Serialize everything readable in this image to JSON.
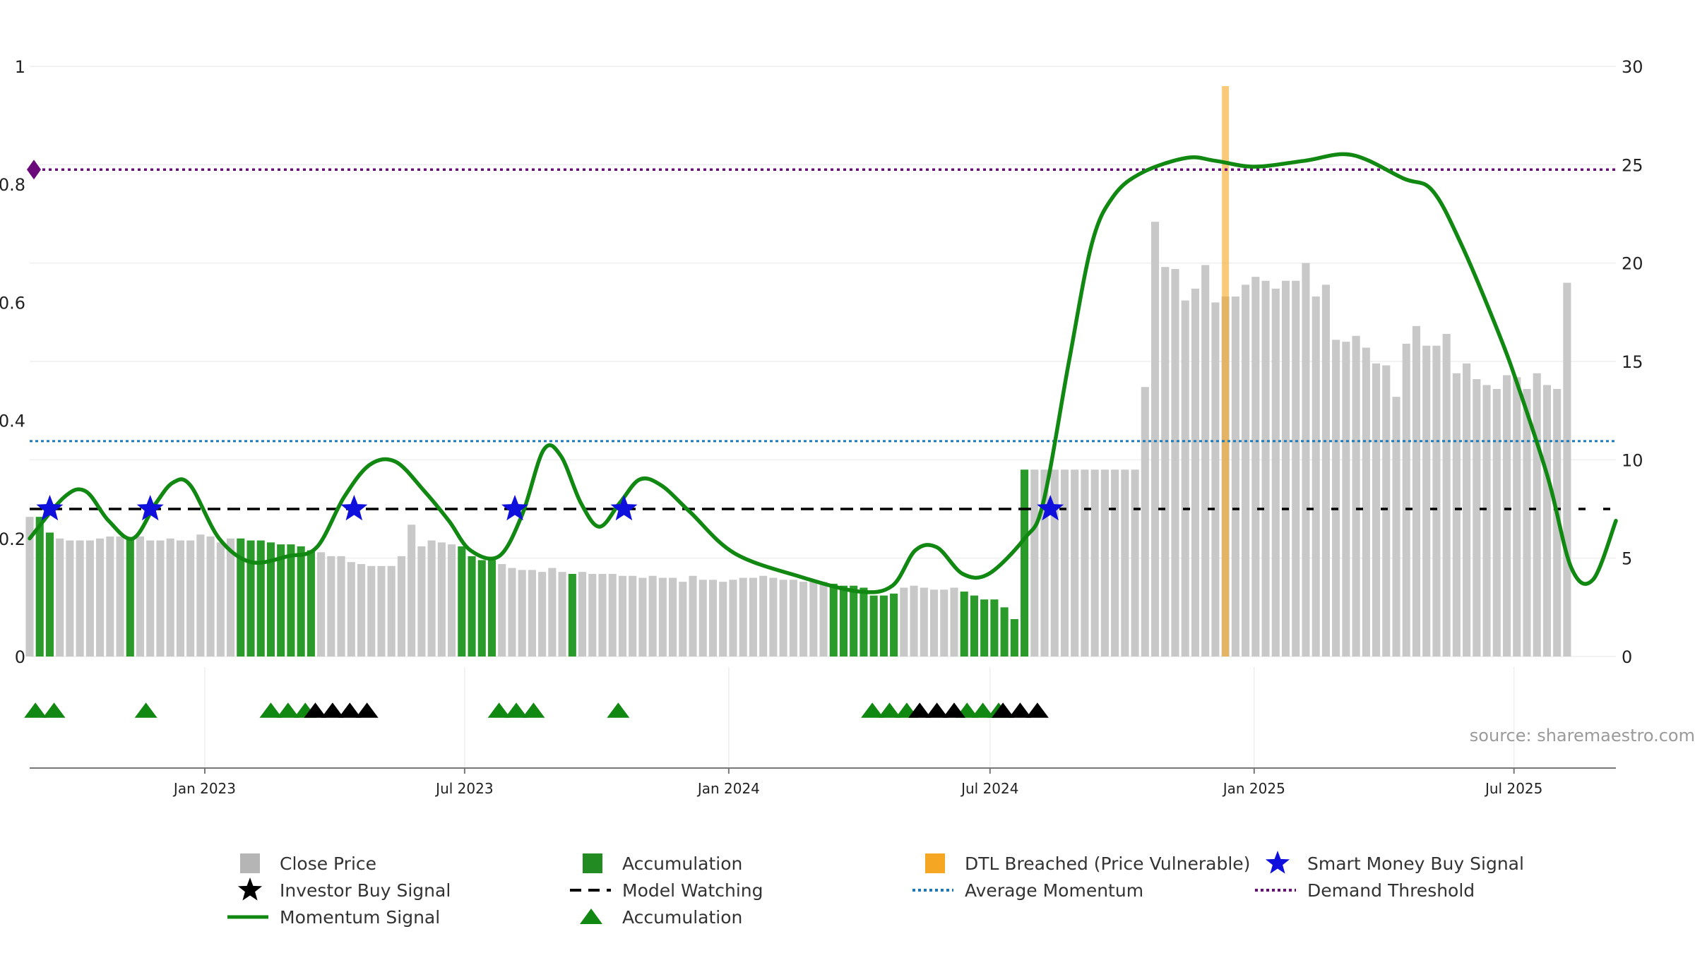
{
  "chart_data": {
    "type": "bar",
    "source_text": "source: sharemaestro.com",
    "left_axis": {
      "ylim": [
        0,
        1
      ],
      "ticks": [
        0,
        0.2,
        0.4,
        0.6,
        0.8,
        1
      ],
      "tick_labels": [
        "0",
        "0.2",
        "0.4",
        "0.6",
        "0.8",
        "1"
      ]
    },
    "right_axis": {
      "ylim": [
        0,
        30
      ],
      "ticks": [
        0,
        5,
        10,
        15,
        20,
        25,
        30
      ],
      "tick_labels": [
        "0",
        "5",
        "10",
        "15",
        "20",
        "25",
        "30"
      ]
    },
    "x_axis": {
      "start": "2022-09-01",
      "end": "2025-09-10",
      "ticks": [
        "2023-01-01",
        "2023-07-01",
        "2024-01-01",
        "2024-07-01",
        "2025-01-01",
        "2025-07-01"
      ],
      "tick_labels": [
        "Jan 2023",
        "Jul 2023",
        "Jan 2024",
        "Jul 2024",
        "Jan 2025",
        "Jul 2025"
      ]
    },
    "grid": true,
    "legend": {
      "placement": "bottom",
      "entries": [
        {
          "label": "Close Price",
          "symbol": "square",
          "color": "#b5b5b5"
        },
        {
          "label": "Accumulation",
          "symbol": "square",
          "color": "#228b22"
        },
        {
          "label": "DTL Breached (Price Vulnerable)",
          "symbol": "square",
          "color": "#f5a623"
        },
        {
          "label": "Smart Money Buy Signal",
          "symbol": "star",
          "color": "#1010dd"
        },
        {
          "label": "Investor Buy Signal",
          "symbol": "star",
          "color": "#000000"
        },
        {
          "label": "Model Watching",
          "symbol": "dash",
          "color": "#000000"
        },
        {
          "label": "Average Momentum",
          "symbol": "dot",
          "color": "#1f77b4"
        },
        {
          "label": "Demand Threshold",
          "symbol": "dot",
          "color": "#6a0a7a"
        },
        {
          "label": "Momentum Signal",
          "symbol": "line",
          "color": "#118811"
        },
        {
          "label": "Accumulation",
          "symbol": "triangle",
          "color": "#118811"
        }
      ]
    },
    "colors": {
      "price": "#c8c8c8",
      "accumulation": "#2a9a2a",
      "dtl": "#f5a623",
      "momentum": "#118811",
      "smart_star": "#1010dd",
      "investor_triangle": "#000000",
      "accum_triangle": "#118811",
      "watch": "#000000",
      "avg": "#1f77b4",
      "demand": "#6a0a7a"
    },
    "demand_threshold": 0.825,
    "average_momentum": 0.365,
    "model_watching_level": 0.25,
    "dtl_breached_date": "2024-12-12",
    "price_series": {
      "start": "2022-09-01",
      "step_days": 7,
      "values": [
        7.1,
        7.1,
        6.3,
        6.0,
        5.9,
        5.9,
        5.9,
        6.0,
        6.1,
        6.1,
        6.0,
        6.1,
        5.9,
        5.9,
        6.0,
        5.9,
        5.9,
        6.2,
        6.1,
        5.8,
        6.0,
        6.0,
        5.9,
        5.9,
        5.8,
        5.7,
        5.7,
        5.6,
        5.4,
        5.3,
        5.1,
        5.1,
        4.8,
        4.7,
        4.6,
        4.6,
        4.6,
        5.1,
        6.7,
        5.6,
        5.9,
        5.8,
        5.7,
        5.6,
        5.1,
        4.9,
        4.9,
        4.7,
        4.5,
        4.4,
        4.4,
        4.3,
        4.5,
        4.3,
        4.2,
        4.3,
        4.2,
        4.2,
        4.2,
        4.1,
        4.1,
        4.0,
        4.1,
        4.0,
        4.0,
        3.8,
        4.1,
        3.9,
        3.9,
        3.8,
        3.9,
        4.0,
        4.0,
        4.1,
        4.0,
        3.9,
        3.9,
        3.8,
        3.8,
        3.8,
        3.7,
        3.6,
        3.6,
        3.5,
        3.1,
        3.1,
        3.2,
        3.5,
        3.6,
        3.5,
        3.4,
        3.4,
        3.5,
        3.3,
        3.1,
        2.9,
        2.9,
        2.5,
        1.9,
        9.5,
        9.5,
        9.5,
        9.5,
        9.5,
        9.5,
        9.5,
        9.5,
        9.5,
        9.5,
        9.5,
        9.5,
        13.7,
        22.1,
        19.8,
        19.7,
        18.1,
        18.7,
        19.9,
        18.0,
        18.3,
        18.3,
        18.9,
        19.3,
        19.1,
        18.7,
        19.1,
        19.1,
        20.0,
        18.3,
        18.9,
        16.1,
        16.0,
        16.3,
        15.7,
        14.9,
        14.8,
        13.2,
        15.9,
        16.8,
        15.8,
        15.8,
        16.4,
        14.4,
        14.9,
        14.1,
        13.8,
        13.6,
        14.3,
        14.2,
        13.6,
        14.4,
        13.8,
        13.6,
        19.0
      ],
      "accumulation_ranges": [
        [
          1,
          2
        ],
        [
          10,
          10
        ],
        [
          21,
          28
        ],
        [
          43,
          46
        ],
        [
          54,
          54
        ],
        [
          80,
          86
        ],
        [
          93,
          99
        ]
      ]
    },
    "momentum_series": {
      "dates": [
        "2022-09-01",
        "2022-09-25",
        "2022-10-10",
        "2022-10-26",
        "2022-11-12",
        "2022-11-28",
        "2022-12-10",
        "2022-12-22",
        "2023-01-11",
        "2023-02-02",
        "2023-02-28",
        "2023-03-20",
        "2023-04-08",
        "2023-04-26",
        "2023-05-14",
        "2023-06-03",
        "2023-06-20",
        "2023-07-05",
        "2023-07-25",
        "2023-08-10",
        "2023-08-25",
        "2023-09-06",
        "2023-09-20",
        "2023-10-03",
        "2023-10-17",
        "2023-10-31",
        "2023-11-15",
        "2023-12-05",
        "2024-01-05",
        "2024-02-20",
        "2024-04-01",
        "2024-04-24",
        "2024-05-10",
        "2024-05-25",
        "2024-06-12",
        "2024-06-30",
        "2024-07-25",
        "2024-08-07",
        "2024-08-25",
        "2024-09-10",
        "2024-09-25",
        "2024-10-15",
        "2024-11-15",
        "2024-12-05",
        "2025-01-01",
        "2025-02-05",
        "2025-03-10",
        "2025-04-15",
        "2025-05-05",
        "2025-05-25",
        "2025-06-20",
        "2025-07-05",
        "2025-07-25",
        "2025-08-10",
        "2025-08-25",
        "2025-09-10"
      ],
      "values": [
        0.2,
        0.27,
        0.28,
        0.23,
        0.2,
        0.26,
        0.295,
        0.29,
        0.2,
        0.16,
        0.17,
        0.185,
        0.27,
        0.325,
        0.33,
        0.28,
        0.23,
        0.18,
        0.17,
        0.24,
        0.35,
        0.34,
        0.26,
        0.22,
        0.26,
        0.3,
        0.29,
        0.245,
        0.175,
        0.135,
        0.11,
        0.12,
        0.18,
        0.185,
        0.14,
        0.14,
        0.2,
        0.26,
        0.5,
        0.7,
        0.78,
        0.82,
        0.845,
        0.84,
        0.83,
        0.84,
        0.85,
        0.81,
        0.79,
        0.7,
        0.55,
        0.45,
        0.3,
        0.15,
        0.13,
        0.23
      ]
    },
    "smart_money_buy_signals": [
      "2022-09-15",
      "2022-11-24",
      "2023-04-15",
      "2023-08-05",
      "2023-10-20",
      "2024-08-12"
    ],
    "investor_buy_signals": [
      "2023-03-19",
      "2023-03-31",
      "2023-04-12",
      "2023-04-24",
      "2024-05-13",
      "2024-05-25",
      "2024-06-06",
      "2024-07-10",
      "2024-07-22",
      "2024-08-03"
    ],
    "accumulation_markers": [
      "2022-09-05",
      "2022-09-18",
      "2022-11-21",
      "2023-02-16",
      "2023-02-28",
      "2023-03-12",
      "2023-07-25",
      "2023-08-06",
      "2023-08-18",
      "2023-10-16",
      "2024-04-10",
      "2024-04-22",
      "2024-05-04",
      "2024-06-15",
      "2024-06-26",
      "2024-07-07"
    ]
  }
}
